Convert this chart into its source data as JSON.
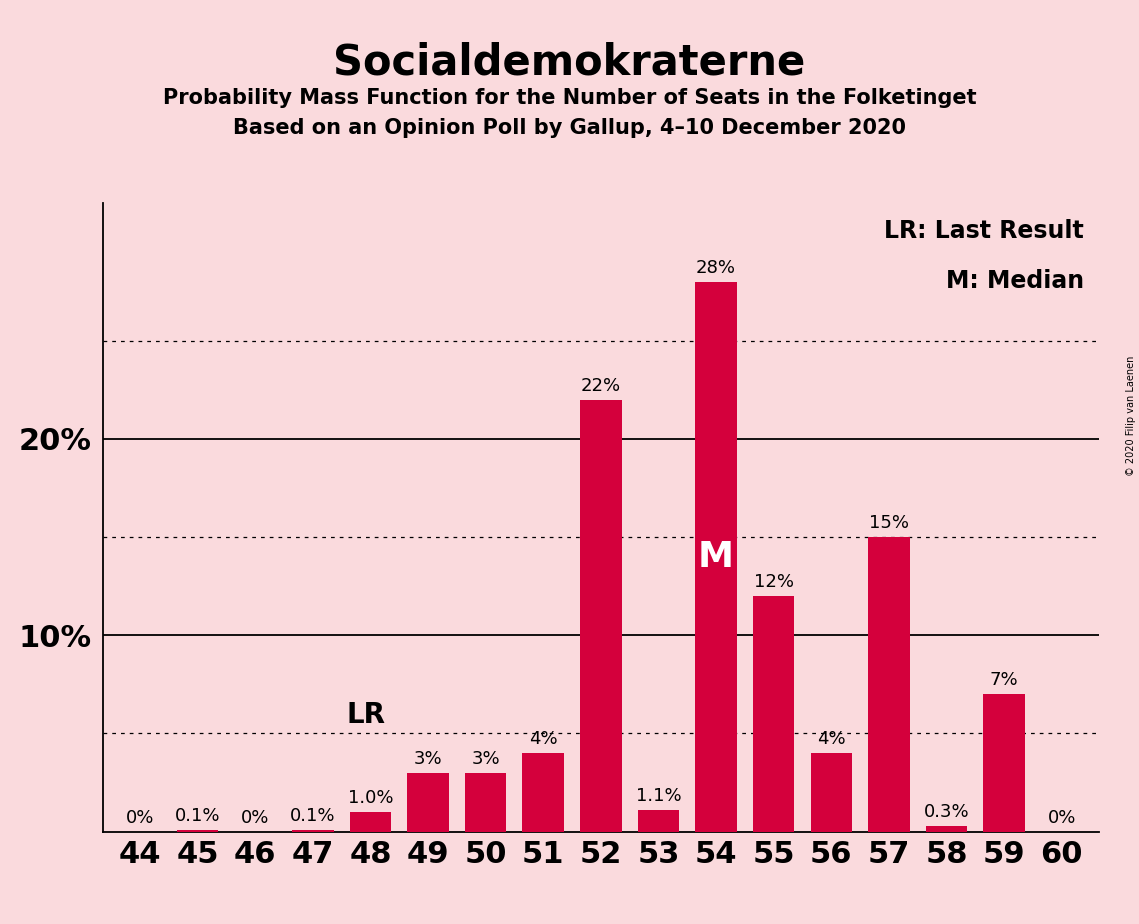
{
  "title": "Socialdemokraterne",
  "subtitle1": "Probability Mass Function for the Number of Seats in the Folketinget",
  "subtitle2": "Based on an Opinion Poll by Gallup, 4–10 December 2020",
  "copyright": "© 2020 Filip van Laenen",
  "seats": [
    44,
    45,
    46,
    47,
    48,
    49,
    50,
    51,
    52,
    53,
    54,
    55,
    56,
    57,
    58,
    59,
    60
  ],
  "probabilities": [
    0.0,
    0.1,
    0.0,
    0.1,
    1.0,
    3.0,
    3.0,
    4.0,
    22.0,
    1.1,
    28.0,
    12.0,
    4.0,
    15.0,
    0.3,
    7.0,
    0.0
  ],
  "bar_labels": [
    "0%",
    "0.1%",
    "0%",
    "0.1%",
    "1.0%",
    "3%",
    "3%",
    "4%",
    "22%",
    "1.1%",
    "28%",
    "12%",
    "4%",
    "15%",
    "0.3%",
    "7%",
    "0%"
  ],
  "bar_color": "#d4003c",
  "background_color": "#fadadd",
  "solid_yticks": [
    10,
    20
  ],
  "dotted_yticks": [
    5,
    15,
    25
  ],
  "lr_seat": 48,
  "median_seat": 54,
  "lr_label": "LR",
  "median_label": "M",
  "legend_lr": "LR: Last Result",
  "legend_m": "M: Median",
  "title_fontsize": 30,
  "subtitle_fontsize": 15,
  "bar_annotation_fontsize": 13,
  "legend_fontsize": 17,
  "axis_label_fontsize": 22,
  "ytick_fontsize": 22,
  "lr_fontsize": 20,
  "m_fontsize": 26,
  "copyright_fontsize": 7,
  "ylim": 32
}
